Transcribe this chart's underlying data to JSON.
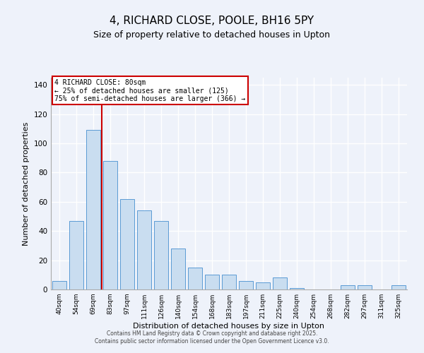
{
  "title": "4, RICHARD CLOSE, POOLE, BH16 5PY",
  "subtitle": "Size of property relative to detached houses in Upton",
  "xlabel": "Distribution of detached houses by size in Upton",
  "ylabel": "Number of detached properties",
  "categories": [
    "40sqm",
    "54sqm",
    "69sqm",
    "83sqm",
    "97sqm",
    "111sqm",
    "126sqm",
    "140sqm",
    "154sqm",
    "168sqm",
    "183sqm",
    "197sqm",
    "211sqm",
    "225sqm",
    "240sqm",
    "254sqm",
    "268sqm",
    "282sqm",
    "297sqm",
    "311sqm",
    "325sqm"
  ],
  "values": [
    6,
    47,
    109,
    88,
    62,
    54,
    47,
    28,
    15,
    10,
    10,
    6,
    5,
    8,
    1,
    0,
    0,
    3,
    3,
    0,
    3
  ],
  "bar_color": "#c9ddf0",
  "bar_edge_color": "#5b9bd5",
  "background_color": "#eef2fa",
  "grid_color": "#ffffff",
  "ylim": [
    0,
    145
  ],
  "yticks": [
    0,
    20,
    40,
    60,
    80,
    100,
    120,
    140
  ],
  "vline_x_index": 2.5,
  "property_line_label": "4 RICHARD CLOSE: 80sqm",
  "annotation_smaller": "← 25% of detached houses are smaller (125)",
  "annotation_larger": "75% of semi-detached houses are larger (366) →",
  "annotation_box_color": "#ffffff",
  "annotation_box_edge": "#cc0000",
  "vline_color": "#cc0000",
  "footer1": "Contains HM Land Registry data © Crown copyright and database right 2025.",
  "footer2": "Contains public sector information licensed under the Open Government Licence v3.0."
}
